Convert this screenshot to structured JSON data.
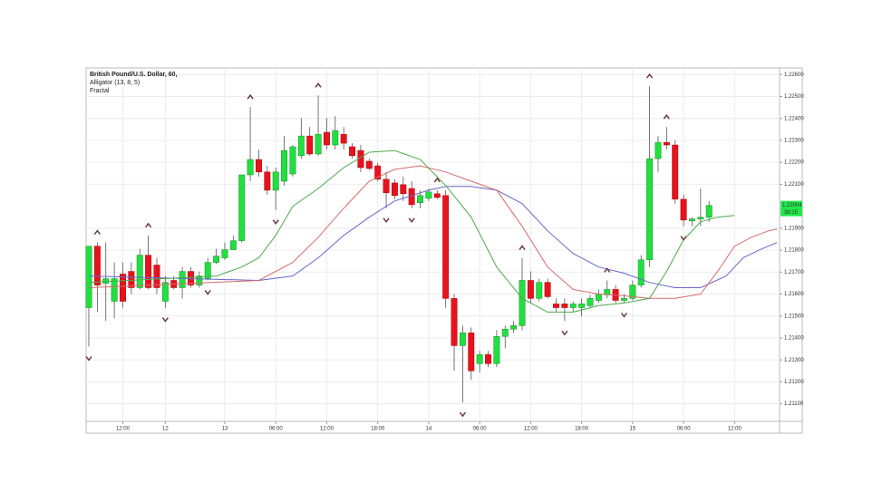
{
  "chart_data": {
    "type": "candlestick",
    "title": "British Pound/U.S. Dollar, 60,",
    "indicators": [
      "Alligator (13, 8, 5)",
      "Fractal"
    ],
    "up_color": "#20e040",
    "down_color": "#e8121e",
    "grid": true,
    "xlim": [
      -0.32,
      81.3
    ],
    "xticks": [
      {
        "value": 4,
        "label": "12:00"
      },
      {
        "value": 9,
        "label": "12"
      },
      {
        "value": 16,
        "label": "13"
      },
      {
        "value": 22,
        "label": "06:00"
      },
      {
        "value": 28,
        "label": "12:00"
      },
      {
        "value": 34,
        "label": "18:00"
      },
      {
        "value": 40,
        "label": "14"
      },
      {
        "value": 46,
        "label": "06:00"
      },
      {
        "value": 52,
        "label": "12:00"
      },
      {
        "value": 58,
        "label": "18:00"
      },
      {
        "value": 64,
        "label": "15"
      },
      {
        "value": 70,
        "label": "06:00"
      },
      {
        "value": 76,
        "label": "12:00"
      }
    ],
    "ylim": [
      1.2102,
      1.2263
    ],
    "yticks": [
      {
        "value": 1.226,
        "label": "1.22600"
      },
      {
        "value": 1.225,
        "label": "1.22500"
      },
      {
        "value": 1.224,
        "label": "1.22400"
      },
      {
        "value": 1.223,
        "label": "1.22300"
      },
      {
        "value": 1.222,
        "label": "1.22200"
      },
      {
        "value": 1.221,
        "label": "1.22100"
      },
      {
        "value": 1.219,
        "label": "1.21900"
      },
      {
        "value": 1.218,
        "label": "1.21800"
      },
      {
        "value": 1.217,
        "label": "1.21700"
      },
      {
        "value": 1.216,
        "label": "1.21600"
      },
      {
        "value": 1.215,
        "label": "1.21500"
      },
      {
        "value": 1.214,
        "label": "1.21400"
      },
      {
        "value": 1.213,
        "label": "1.21300"
      },
      {
        "value": 1.212,
        "label": "1.21200"
      },
      {
        "value": 1.211,
        "label": "1.21100"
      }
    ],
    "open": [
      1.21538,
      1.21818,
      1.21649,
      1.21567,
      1.21691,
      1.21703,
      1.21629,
      1.21777,
      1.21732,
      1.21567,
      1.21662,
      1.21629,
      1.21703,
      1.21641,
      1.2167,
      1.21744,
      1.21765,
      1.21802,
      1.21843,
      1.22143,
      1.22213,
      1.22156,
      1.22073,
      1.22114,
      1.22147,
      1.2223,
      1.2232,
      1.22238,
      1.22337,
      1.22279,
      1.22328,
      1.22271,
      1.22254,
      1.22205,
      1.22184,
      1.22123,
      1.22106,
      1.22098,
      1.22081,
      1.22016,
      1.22036,
      1.22057,
      1.22049,
      1.2158,
      1.21365,
      1.21423,
      1.21283,
      1.21324,
      1.21283,
      1.21407,
      1.2144,
      1.21456,
      1.21662,
      1.2158,
      1.21653,
      1.21555,
      1.21555,
      1.21538,
      1.21538,
      1.21547,
      1.21571,
      1.21596,
      1.21621,
      1.21571,
      1.2158,
      1.21641,
      1.21756,
      1.22217,
      1.22291,
      1.22279,
      1.22032,
      1.21933,
      1.21942,
      1.2195
    ],
    "high": [
      1.21818,
      1.21835,
      1.21835,
      1.21744,
      1.21744,
      1.21744,
      1.21806,
      1.21867,
      1.21765,
      1.21682,
      1.21682,
      1.21723,
      1.21723,
      1.21703,
      1.21765,
      1.21806,
      1.21835,
      1.21867,
      1.22143,
      1.22452,
      1.22258,
      1.22184,
      1.22176,
      1.2232,
      1.22279,
      1.22402,
      1.22361,
      1.22505,
      1.22402,
      1.22411,
      1.22361,
      1.22287,
      1.22279,
      1.22217,
      1.22197,
      1.22156,
      1.22123,
      1.22135,
      1.22114,
      1.22073,
      1.22081,
      1.22073,
      1.22073,
      1.216,
      1.21456,
      1.21448,
      1.21341,
      1.21341,
      1.21435,
      1.21456,
      1.21477,
      1.21765,
      1.21703,
      1.2167,
      1.2167,
      1.2158,
      1.2158,
      1.21567,
      1.2158,
      1.21596,
      1.21621,
      1.21662,
      1.21641,
      1.216,
      1.21662,
      1.21777,
      1.22547,
      1.2232,
      1.22361,
      1.223,
      1.22053,
      1.2195,
      1.22081,
      1.22024
    ],
    "low": [
      1.21361,
      1.21518,
      1.21477,
      1.21489,
      1.21538,
      1.216,
      1.21621,
      1.21621,
      1.216,
      1.21538,
      1.21621,
      1.2158,
      1.21629,
      1.21629,
      1.21662,
      1.21736,
      1.21756,
      1.21802,
      1.21835,
      1.22114,
      1.22135,
      1.22053,
      1.21983,
      1.22094,
      1.22135,
      1.22217,
      1.2223,
      1.2223,
      1.22258,
      1.22258,
      1.22258,
      1.22217,
      1.22156,
      1.22164,
      1.22114,
      1.21991,
      1.22032,
      1.22024,
      1.21991,
      1.21991,
      1.22024,
      1.22032,
      1.21538,
      1.2125,
      1.21106,
      1.21209,
      1.21242,
      1.21267,
      1.21267,
      1.21353,
      1.21423,
      1.21435,
      1.21559,
      1.21567,
      1.2158,
      1.21518,
      1.21477,
      1.21518,
      1.21497,
      1.21538,
      1.21559,
      1.2158,
      1.21559,
      1.21559,
      1.21571,
      1.21629,
      1.21723,
      1.22156,
      1.22258,
      1.22012,
      1.21909,
      1.21909,
      1.21909,
      1.21929
    ],
    "close": [
      1.21818,
      1.21641,
      1.2167,
      1.2167,
      1.21567,
      1.21629,
      1.21777,
      1.21629,
      1.21629,
      1.21653,
      1.21629,
      1.21703,
      1.21641,
      1.21682,
      1.21744,
      1.21773,
      1.21802,
      1.21843,
      1.22143,
      1.22213,
      1.22156,
      1.22073,
      1.22156,
      1.22254,
      1.22271,
      1.2232,
      1.22238,
      1.22328,
      1.22279,
      1.22345,
      1.22287,
      1.2223,
      1.22176,
      1.22172,
      1.22123,
      1.22061,
      1.22049,
      1.22057,
      1.22007,
      1.22049,
      1.22065,
      1.2204,
      1.2158,
      1.21365,
      1.21423,
      1.2125,
      1.21324,
      1.21283,
      1.21407,
      1.2144,
      1.21456,
      1.21662,
      1.2158,
      1.21653,
      1.21588,
      1.21538,
      1.21538,
      1.21555,
      1.21555,
      1.2158,
      1.216,
      1.21621,
      1.21571,
      1.2158,
      1.21641,
      1.21756,
      1.22217,
      1.22291,
      1.22279,
      1.22032,
      1.21937,
      1.21942,
      1.2195,
      1.22004
    ],
    "lines": [
      {
        "color": "#6666cc",
        "x": [
          0,
          20,
          24,
          27,
          30,
          33,
          36,
          40,
          42,
          45,
          48,
          51,
          54,
          57,
          60,
          63,
          66,
          69,
          72,
          75,
          77,
          79,
          81
        ],
        "values": [
          1.21682,
          1.21662,
          1.21682,
          1.21765,
          1.21867,
          1.2195,
          1.22024,
          1.22073,
          1.2209,
          1.2209,
          1.22073,
          1.22012,
          1.21888,
          1.21785,
          1.21723,
          1.21695,
          1.21653,
          1.21629,
          1.21629,
          1.21682,
          1.21765,
          1.21802,
          1.21835
        ]
      },
      {
        "color": "#d86a6a",
        "x": [
          0,
          20,
          24,
          27,
          30,
          33,
          36,
          39,
          42,
          45,
          48,
          51,
          54,
          57,
          60,
          63,
          66,
          69,
          72,
          74,
          76,
          78,
          80,
          81
        ],
        "values": [
          1.21629,
          1.21662,
          1.21744,
          1.21859,
          1.21991,
          1.22114,
          1.22168,
          1.22184,
          1.22156,
          1.22114,
          1.22073,
          1.21909,
          1.21723,
          1.21621,
          1.216,
          1.21592,
          1.2158,
          1.2158,
          1.216,
          1.21703,
          1.21818,
          1.21859,
          1.21888,
          1.21896
        ]
      },
      {
        "color": "#4caa4c",
        "x": [
          0,
          15,
          18,
          20,
          22,
          24,
          27,
          30,
          33,
          36,
          39,
          42,
          45,
          48,
          51,
          54,
          57,
          60,
          63,
          66,
          68,
          70,
          72,
          74,
          76
        ],
        "values": [
          1.21653,
          1.21682,
          1.21723,
          1.21765,
          1.21867,
          1.21999,
          1.22081,
          1.22176,
          1.22246,
          1.22254,
          1.22213,
          1.22094,
          1.2195,
          1.21723,
          1.2158,
          1.21518,
          1.21518,
          1.21547,
          1.21559,
          1.2158,
          1.21703,
          1.21847,
          1.21929,
          1.2195,
          1.21958
        ]
      }
    ],
    "fractal_color": "#6b3a3a",
    "fractals_up": [
      1,
      7,
      19,
      27,
      41,
      51,
      61,
      66,
      68
    ],
    "fractals_down": [
      0,
      9,
      14,
      22,
      35,
      38,
      44,
      56,
      63,
      70
    ],
    "last_price": 1.22004,
    "countdown": "36:15"
  }
}
